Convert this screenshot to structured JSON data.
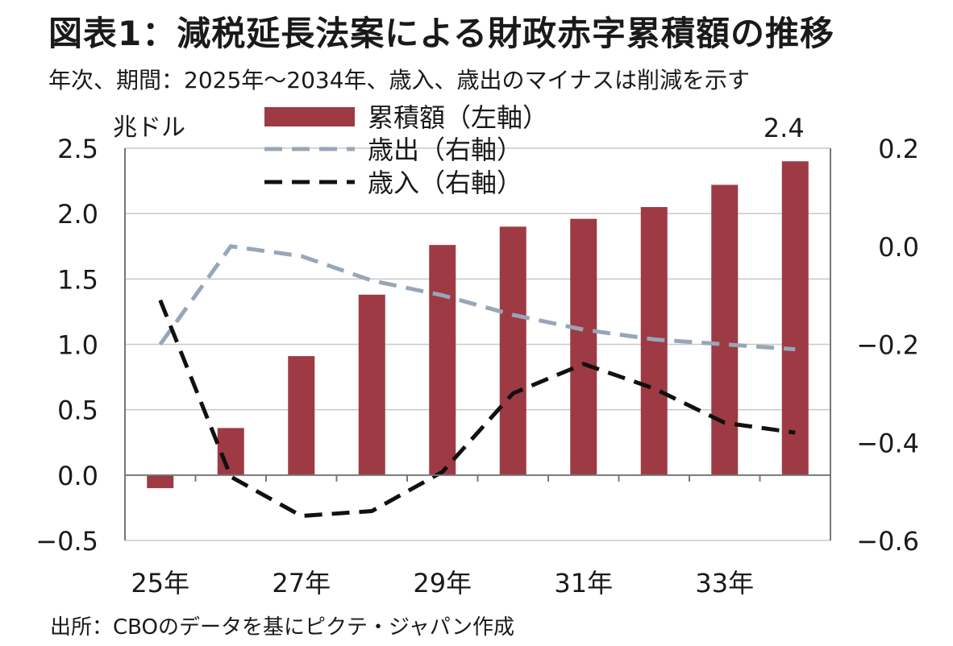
{
  "title": "図表1：減税延長法案による財政赤字累積額の推移",
  "subtitle": "年次、期間：2025年～2034年、歳入、歳出のマイナスは削減を示す",
  "source": "出所：CBOのデータを基にピクテ・ジャパン作成",
  "colors": {
    "bar": "#9e3a43",
    "expenditure": "#97a6b8",
    "revenue": "#111111",
    "grid": "#c8c8c8"
  },
  "chart_data": {
    "type": "bar",
    "x": [
      2025,
      2026,
      2027,
      2028,
      2029,
      2030,
      2031,
      2032,
      2033,
      2034
    ],
    "xtick_labels": [
      "25年",
      "",
      "27年",
      "",
      "29年",
      "",
      "31年",
      "",
      "33年",
      ""
    ],
    "left_axis": {
      "unit": "兆ドル",
      "range": [
        -0.5,
        2.5
      ],
      "ticks": [
        "2.5",
        "2.0",
        "1.5",
        "1.0",
        "0.5",
        "0.0",
        "−0.5"
      ]
    },
    "right_axis": {
      "range": [
        -0.6,
        0.2
      ],
      "ticks": [
        "0.2",
        "0.0",
        "−0.2",
        "−0.4",
        "−0.6"
      ]
    },
    "grid": true,
    "legend_position": "top",
    "series": [
      {
        "name": "累積額（左軸）",
        "type": "bar",
        "axis": "left",
        "values": [
          -0.1,
          0.36,
          0.91,
          1.38,
          1.76,
          1.9,
          1.96,
          2.05,
          2.22,
          2.4
        ]
      },
      {
        "name": "歳出（右軸）",
        "type": "line",
        "style": "dashed",
        "axis": "right",
        "values": [
          -0.2,
          0.0,
          -0.02,
          -0.07,
          -0.1,
          -0.14,
          -0.17,
          -0.19,
          -0.2,
          -0.21
        ]
      },
      {
        "name": "歳入（右軸）",
        "type": "line",
        "style": "dashed",
        "axis": "right",
        "values": [
          -0.11,
          -0.47,
          -0.55,
          -0.54,
          -0.46,
          -0.3,
          -0.24,
          -0.29,
          -0.36,
          -0.38
        ]
      }
    ],
    "annotations": [
      {
        "x": 2034,
        "text": "2.4"
      }
    ]
  }
}
